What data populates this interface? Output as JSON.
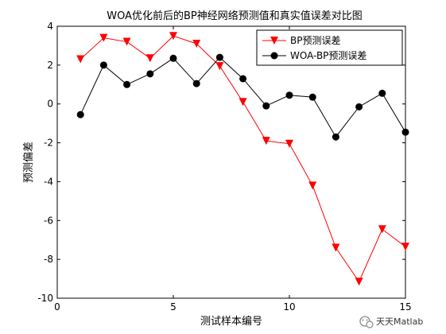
{
  "chart_data": {
    "type": "line",
    "title": "WOA优化前后的BP神经网络预测值和真实值误差对比图",
    "xlabel": "测试样本编号",
    "ylabel": "预测偏差",
    "xlim": [
      0,
      15
    ],
    "ylim": [
      -10,
      4
    ],
    "xticks": [
      "0",
      "5",
      "10",
      "15"
    ],
    "yticks": [
      "-10",
      "-8",
      "-6",
      "-4",
      "-2",
      "0",
      "2",
      "4"
    ],
    "grid": false,
    "legend_position": "top-right",
    "x": [
      1,
      2,
      3,
      4,
      5,
      6,
      7,
      8,
      9,
      10,
      11,
      12,
      13,
      14,
      15
    ],
    "series": [
      {
        "name": "BP预测误差",
        "color": "#ff0000",
        "marker": "triangle-down",
        "values": [
          2.3,
          3.4,
          3.2,
          2.35,
          3.5,
          3.1,
          1.95,
          0.1,
          -1.9,
          -2.05,
          -4.2,
          -7.4,
          -9.15,
          -6.45,
          -7.35
        ]
      },
      {
        "name": "WOA-BP预测误差",
        "color": "#000000",
        "marker": "circle",
        "values": [
          -0.55,
          2.0,
          1.0,
          1.55,
          2.35,
          1.05,
          2.4,
          1.3,
          -0.1,
          0.45,
          0.35,
          -1.7,
          -0.15,
          0.55,
          -1.45
        ]
      }
    ]
  },
  "watermark": {
    "text": "天天Matlab",
    "icon": "wechat-logo-icon"
  }
}
